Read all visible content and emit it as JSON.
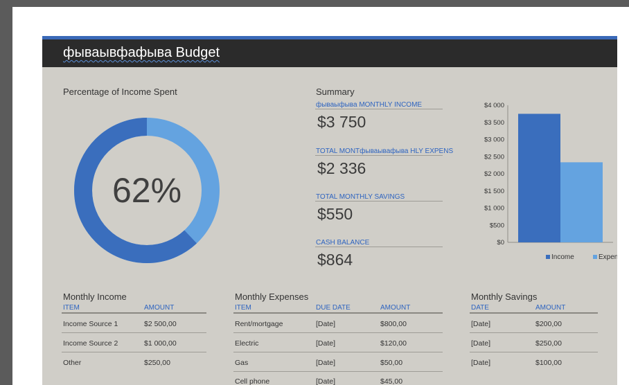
{
  "page": {
    "title": "фываывфафыва Budget"
  },
  "percent_spent": {
    "title": "Percentage of Income Spent",
    "value_label": "62%",
    "value": 0.62,
    "colors": {
      "spent": "#3a6ebd",
      "remaining": "#64a3e0"
    }
  },
  "summary": {
    "title": "Summary",
    "items": [
      {
        "label": "фываыфыва MONTHLY INCOME",
        "value": "$3 750"
      },
      {
        "label": "TOTAL MONTфываывафыва HLY EXPENS",
        "value": "$2 336"
      },
      {
        "label": "TOTAL MONTHLY SAVINGS",
        "value": "$550"
      },
      {
        "label": "CASH BALANCE",
        "value": "$864"
      }
    ]
  },
  "chart_data": {
    "type": "bar",
    "categories": [
      ""
    ],
    "series": [
      {
        "name": "Income",
        "values": [
          3750
        ],
        "color": "#3a6ebd"
      },
      {
        "name": "Expenses",
        "values": [
          2336
        ],
        "color": "#64a3e0"
      }
    ],
    "yticks": [
      "$0",
      "$500",
      "$1 000",
      "$1 500",
      "$2 000",
      "$2 500",
      "$3 000",
      "$3 500",
      "$4 000"
    ],
    "ylim": [
      0,
      4000
    ],
    "legend": "bottom"
  },
  "income": {
    "title": "Monthly Income",
    "headers": [
      "ITEM",
      "AMOUNT"
    ],
    "rows": [
      [
        "Income Source 1",
        "$2 500,00"
      ],
      [
        "Income Source 2",
        "$1 000,00"
      ],
      [
        "Other",
        "$250,00"
      ]
    ]
  },
  "expenses": {
    "title": "Monthly Expenses",
    "headers": [
      "ITEM",
      "DUE DATE",
      "AMOUNT"
    ],
    "rows": [
      [
        "Rent/mortgage",
        "[Date]",
        "$800,00"
      ],
      [
        "Electric",
        "[Date]",
        "$120,00"
      ],
      [
        "Gas",
        "[Date]",
        "$50,00"
      ],
      [
        "Cell phone",
        "[Date]",
        "$45,00"
      ]
    ]
  },
  "savings": {
    "title": "Monthly Savings",
    "headers": [
      "DATE",
      "AMOUNT"
    ],
    "rows": [
      [
        "[Date]",
        "$200,00"
      ],
      [
        "[Date]",
        "$250,00"
      ],
      [
        "[Date]",
        "$100,00"
      ]
    ]
  }
}
